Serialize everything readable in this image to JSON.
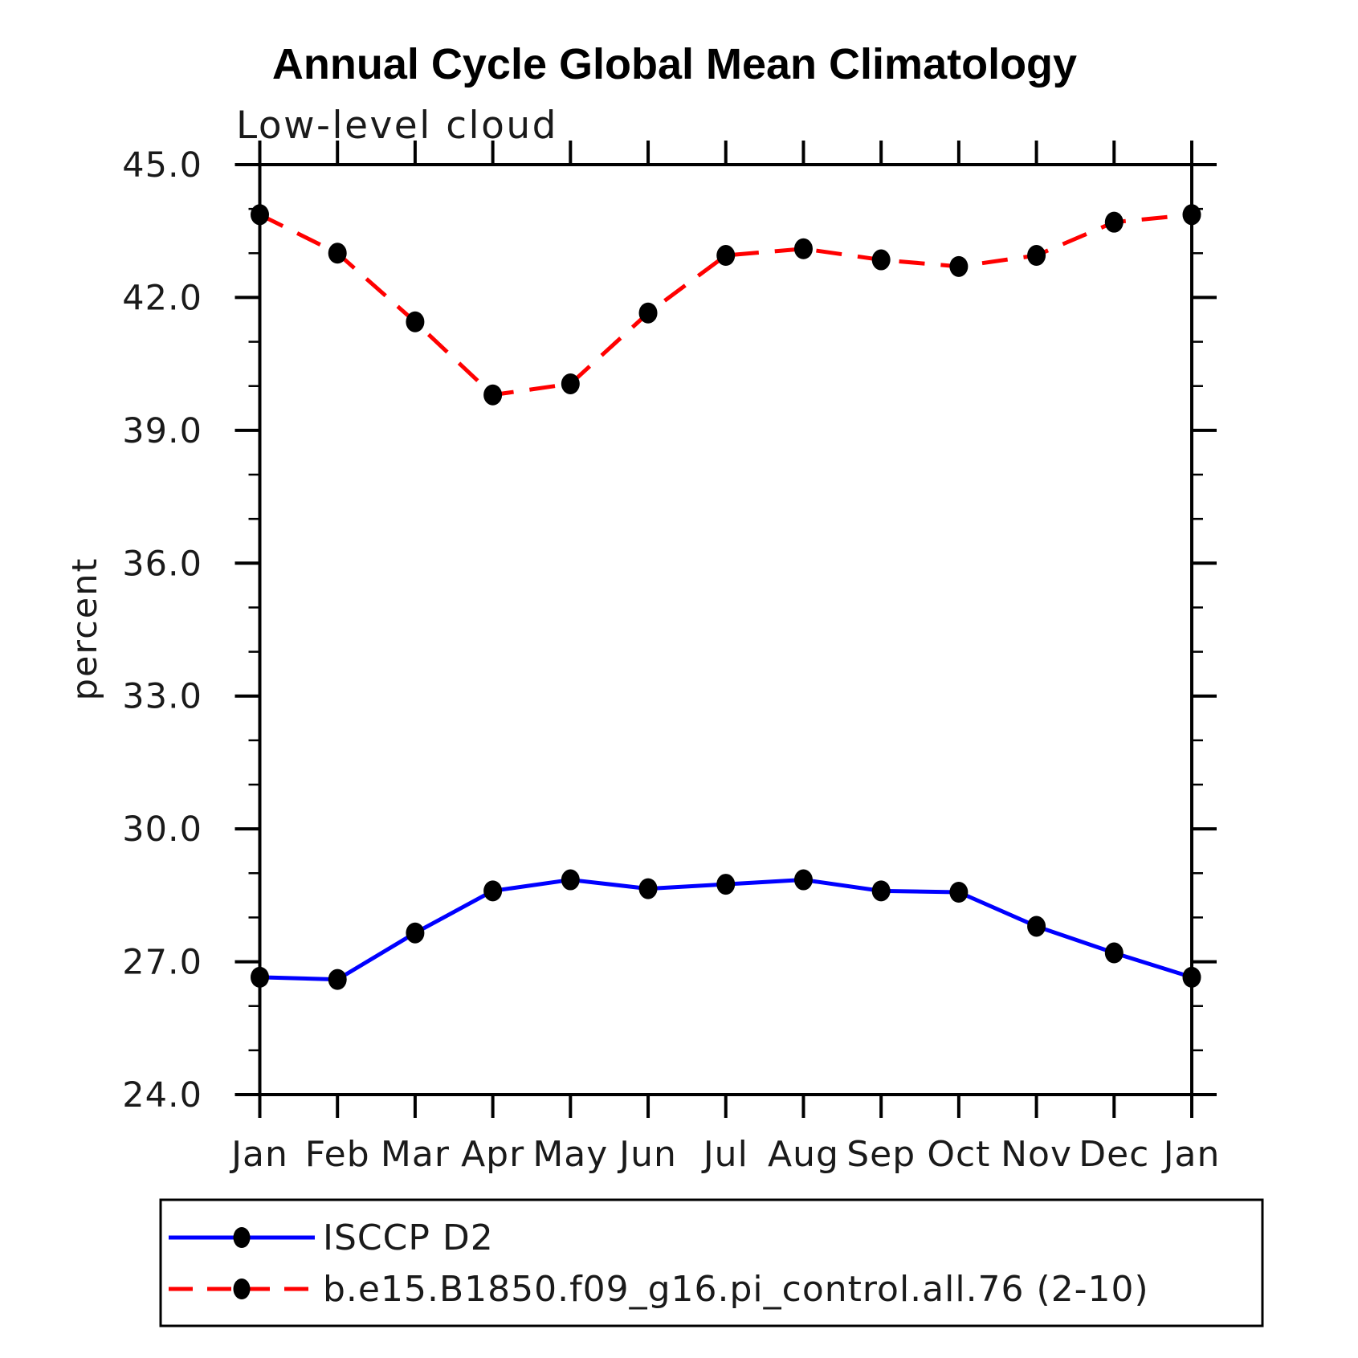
{
  "page": {
    "background_color": "#ffffff",
    "axis_color": "#000000",
    "marker_color": "#000000"
  },
  "chart_data": {
    "type": "line",
    "title": "Annual Cycle Global Mean Climatology",
    "subtitle": "Low-level cloud",
    "ylabel": "percent",
    "x_categories": [
      "Jan",
      "Feb",
      "Mar",
      "Apr",
      "May",
      "Jun",
      "Jul",
      "Aug",
      "Sep",
      "Oct",
      "Nov",
      "Dec",
      "Jan"
    ],
    "ylim": [
      24.0,
      45.0
    ],
    "y_major_ticks": [
      24.0,
      27.0,
      30.0,
      33.0,
      36.0,
      39.0,
      42.0,
      45.0
    ],
    "y_minor_step": 1.0,
    "y_tick_format_decimals": 1,
    "grid": false,
    "legend_position": "bottom-left-box",
    "series": [
      {
        "name": "ISCCP D2",
        "color": "#0000ff",
        "line_style": "solid",
        "marker": "circle",
        "marker_color": "#000000",
        "values": [
          26.65,
          26.6,
          27.65,
          28.6,
          28.85,
          28.65,
          28.75,
          28.85,
          28.6,
          28.57,
          27.8,
          27.2,
          26.65
        ]
      },
      {
        "name": "b.e15.B1850.f09_g16.pi_control.all.76 (2-10)",
        "color": "#ff0000",
        "line_style": "dashed",
        "marker": "circle",
        "marker_color": "#000000",
        "values": [
          43.87,
          43.0,
          41.45,
          39.8,
          40.05,
          41.65,
          42.95,
          43.1,
          42.85,
          42.7,
          42.95,
          43.7,
          43.87
        ]
      }
    ]
  }
}
